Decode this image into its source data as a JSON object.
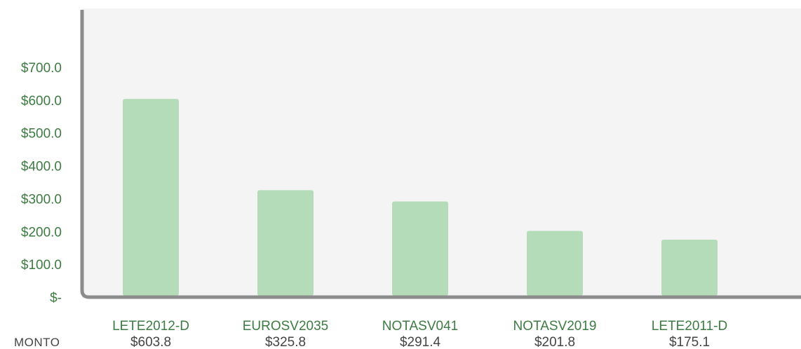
{
  "chart_data": {
    "type": "bar",
    "categories": [
      "LETE2012-D",
      "EUROSV2035",
      "NOTASV041",
      "NOTASV2019",
      "LETE2011-D"
    ],
    "values": [
      603.8,
      325.8,
      291.4,
      201.8,
      175.1
    ],
    "value_labels": [
      "$603.8",
      "$325.8",
      "$291.4",
      "$201.8",
      "$175.1"
    ],
    "row_label": "MONTO",
    "yticks": [
      {
        "value": 0,
        "label": "$-"
      },
      {
        "value": 100,
        "label": "$100.0"
      },
      {
        "value": 200,
        "label": "$200.0"
      },
      {
        "value": 300,
        "label": "$300.0"
      },
      {
        "value": 400,
        "label": "$400.0"
      },
      {
        "value": 500,
        "label": "$500.0"
      },
      {
        "value": 600,
        "label": "$600.0"
      },
      {
        "value": 700,
        "label": "$700.0"
      }
    ],
    "ylim": [
      0,
      700
    ],
    "grid": false,
    "legend": "none",
    "title": "",
    "xlabel": "",
    "ylabel": "",
    "colors": {
      "bar": "#b5dcb9",
      "plot_background": "#f3f4f3",
      "axis": "#8c8c8c",
      "tick_text": "#3d7b42",
      "category_text": "#3d7b42",
      "value_text": "#444444"
    }
  }
}
